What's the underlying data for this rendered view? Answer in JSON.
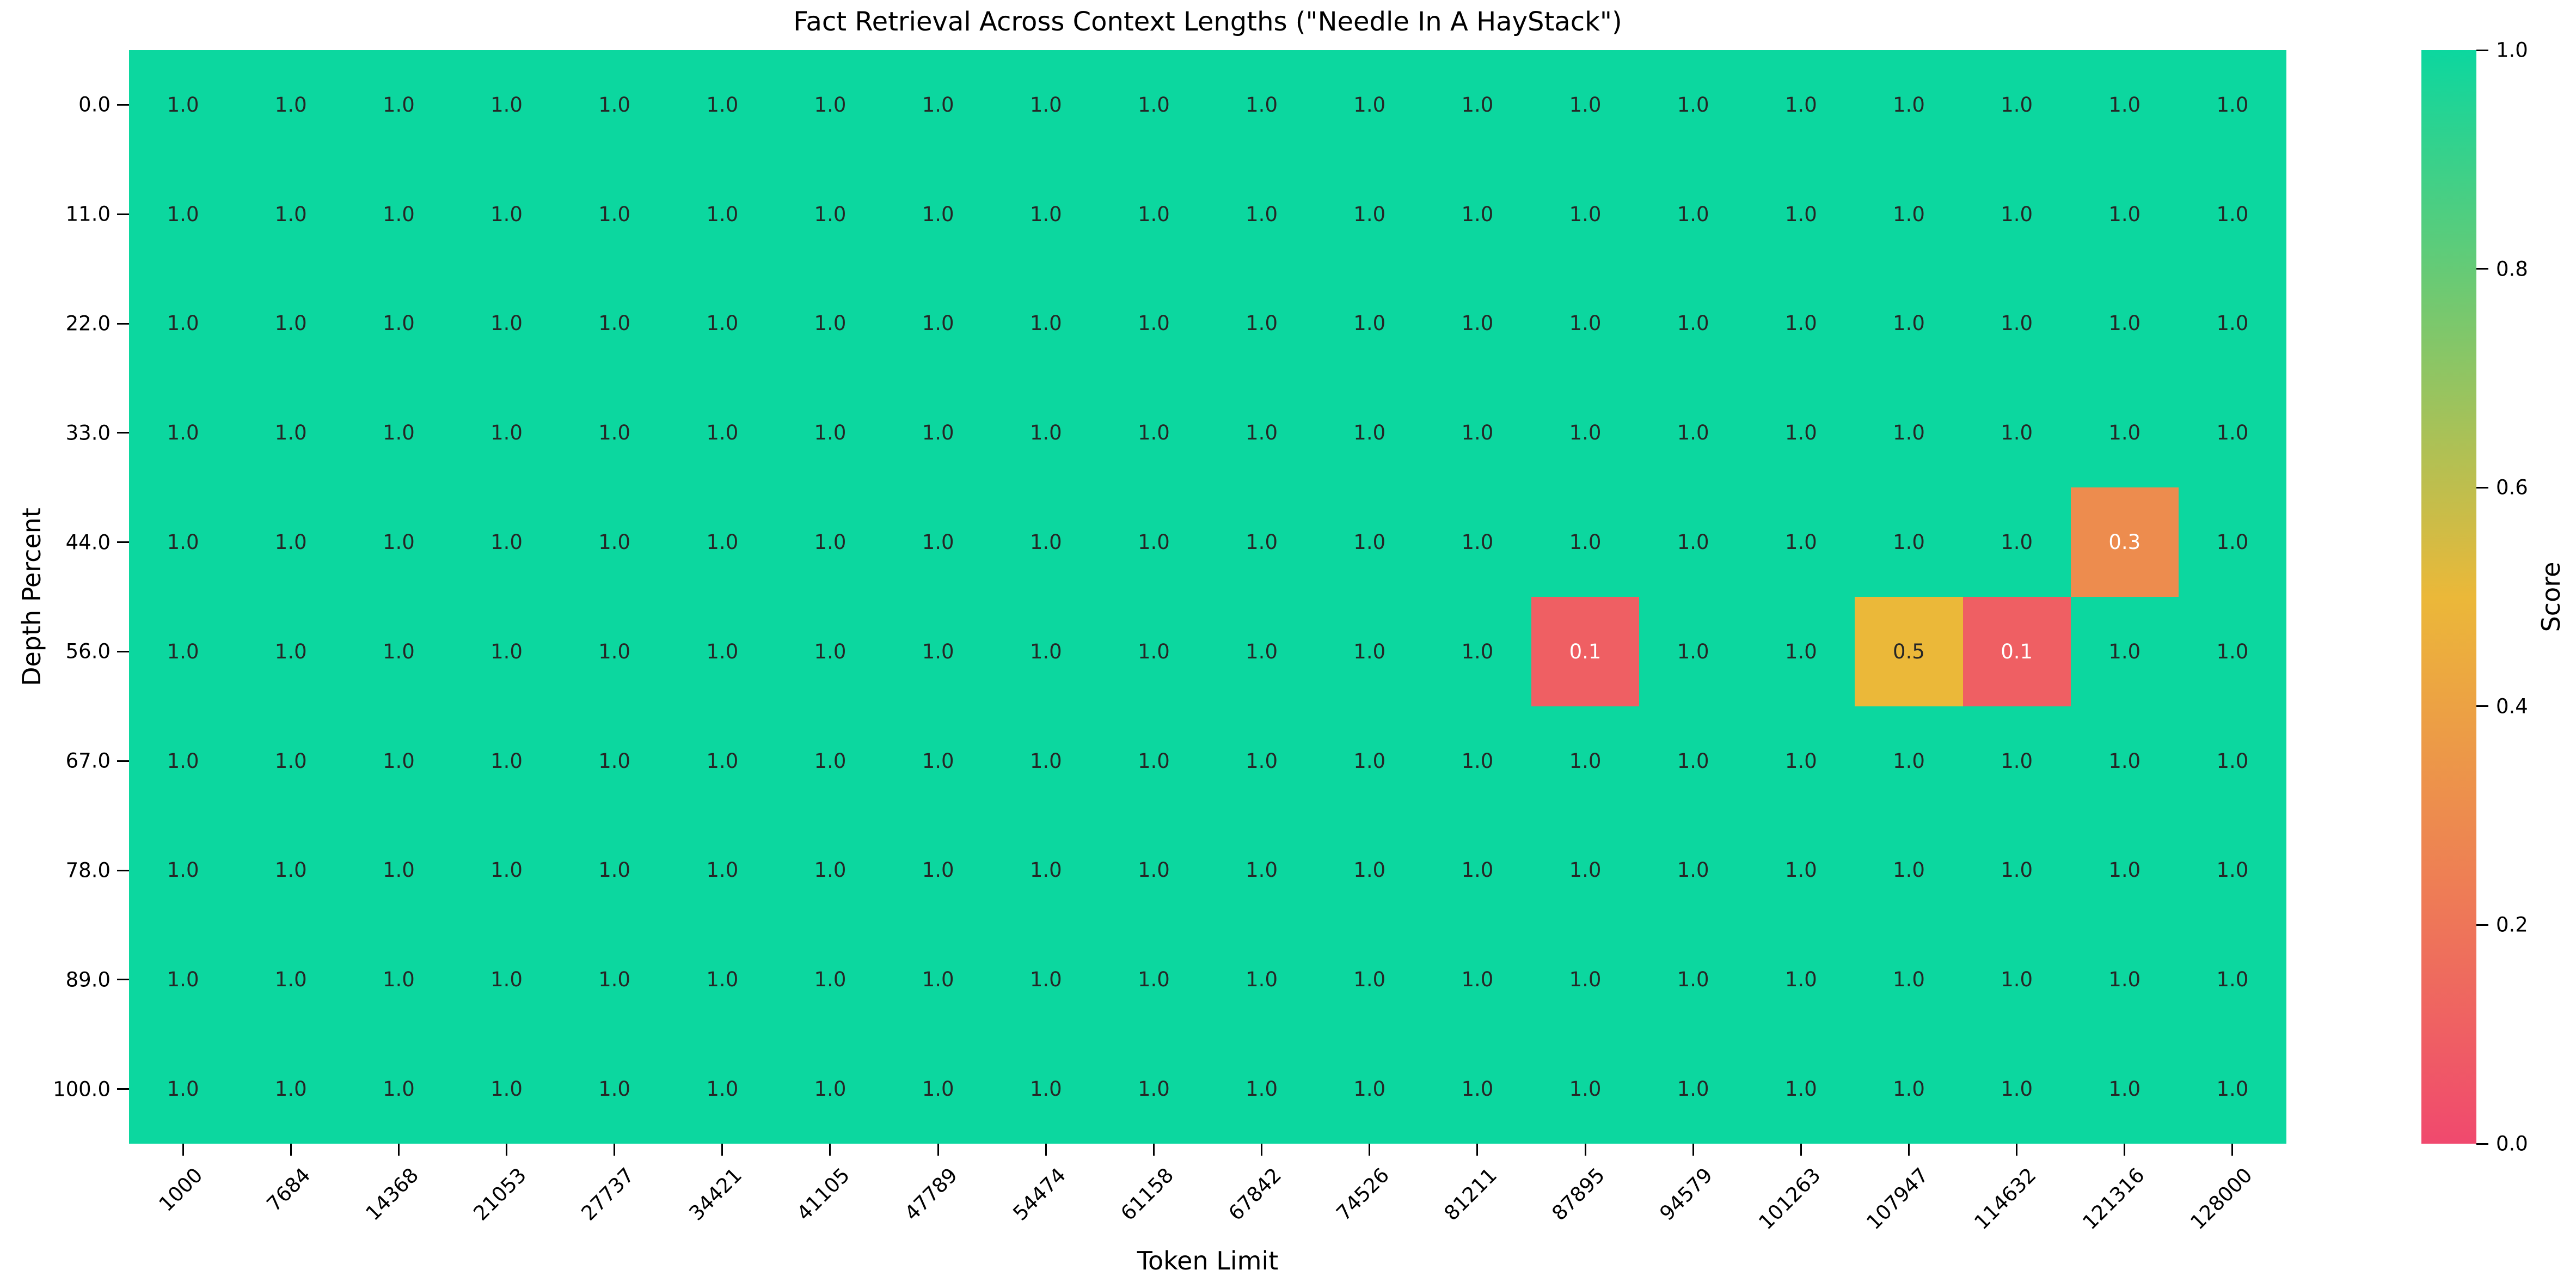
{
  "chart_data": {
    "type": "heatmap",
    "title": "Fact Retrieval Across Context Lengths (\"Needle In A HayStack\")",
    "xlabel": "Token Limit",
    "ylabel": "Depth Percent",
    "x_categories": [
      "1000",
      "7684",
      "14368",
      "21053",
      "27737",
      "34421",
      "41105",
      "47789",
      "54474",
      "61158",
      "67842",
      "74526",
      "81211",
      "87895",
      "94579",
      "101263",
      "107947",
      "114632",
      "121316",
      "128000"
    ],
    "y_categories": [
      "0.0",
      "11.0",
      "22.0",
      "33.0",
      "44.0",
      "56.0",
      "67.0",
      "78.0",
      "89.0",
      "100.0"
    ],
    "values": [
      [
        1.0,
        1.0,
        1.0,
        1.0,
        1.0,
        1.0,
        1.0,
        1.0,
        1.0,
        1.0,
        1.0,
        1.0,
        1.0,
        1.0,
        1.0,
        1.0,
        1.0,
        1.0,
        1.0,
        1.0
      ],
      [
        1.0,
        1.0,
        1.0,
        1.0,
        1.0,
        1.0,
        1.0,
        1.0,
        1.0,
        1.0,
        1.0,
        1.0,
        1.0,
        1.0,
        1.0,
        1.0,
        1.0,
        1.0,
        1.0,
        1.0
      ],
      [
        1.0,
        1.0,
        1.0,
        1.0,
        1.0,
        1.0,
        1.0,
        1.0,
        1.0,
        1.0,
        1.0,
        1.0,
        1.0,
        1.0,
        1.0,
        1.0,
        1.0,
        1.0,
        1.0,
        1.0
      ],
      [
        1.0,
        1.0,
        1.0,
        1.0,
        1.0,
        1.0,
        1.0,
        1.0,
        1.0,
        1.0,
        1.0,
        1.0,
        1.0,
        1.0,
        1.0,
        1.0,
        1.0,
        1.0,
        1.0,
        1.0
      ],
      [
        1.0,
        1.0,
        1.0,
        1.0,
        1.0,
        1.0,
        1.0,
        1.0,
        1.0,
        1.0,
        1.0,
        1.0,
        1.0,
        1.0,
        1.0,
        1.0,
        1.0,
        1.0,
        0.3,
        1.0
      ],
      [
        1.0,
        1.0,
        1.0,
        1.0,
        1.0,
        1.0,
        1.0,
        1.0,
        1.0,
        1.0,
        1.0,
        1.0,
        1.0,
        0.1,
        1.0,
        1.0,
        0.5,
        0.1,
        1.0,
        1.0
      ],
      [
        1.0,
        1.0,
        1.0,
        1.0,
        1.0,
        1.0,
        1.0,
        1.0,
        1.0,
        1.0,
        1.0,
        1.0,
        1.0,
        1.0,
        1.0,
        1.0,
        1.0,
        1.0,
        1.0,
        1.0
      ],
      [
        1.0,
        1.0,
        1.0,
        1.0,
        1.0,
        1.0,
        1.0,
        1.0,
        1.0,
        1.0,
        1.0,
        1.0,
        1.0,
        1.0,
        1.0,
        1.0,
        1.0,
        1.0,
        1.0,
        1.0
      ],
      [
        1.0,
        1.0,
        1.0,
        1.0,
        1.0,
        1.0,
        1.0,
        1.0,
        1.0,
        1.0,
        1.0,
        1.0,
        1.0,
        1.0,
        1.0,
        1.0,
        1.0,
        1.0,
        1.0,
        1.0
      ],
      [
        1.0,
        1.0,
        1.0,
        1.0,
        1.0,
        1.0,
        1.0,
        1.0,
        1.0,
        1.0,
        1.0,
        1.0,
        1.0,
        1.0,
        1.0,
        1.0,
        1.0,
        1.0,
        1.0,
        1.0
      ]
    ],
    "annotation_format": ".1f",
    "annotation_colors": {
      "dark": "#262626",
      "light": "#FFFFFF"
    },
    "colormap_stops": [
      {
        "pos": 0.0,
        "color": "#F0496E"
      },
      {
        "pos": 0.5,
        "color": "#EBB839"
      },
      {
        "pos": 1.0,
        "color": "#0CD79F"
      }
    ],
    "colorbar": {
      "label": "Score",
      "ticks": [
        "1.0",
        "0.8",
        "0.6",
        "0.4",
        "0.2",
        "0.0"
      ],
      "vmin": 0.0,
      "vmax": 1.0,
      "position": "right"
    },
    "grid": false,
    "xlim": [
      1000,
      128000
    ],
    "ylim": [
      0,
      100
    ]
  }
}
